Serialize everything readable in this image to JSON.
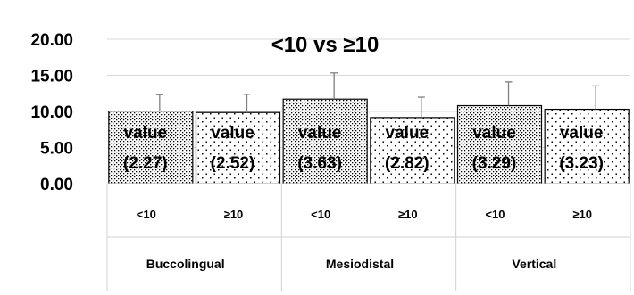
{
  "chart_data": {
    "type": "bar",
    "title": "<10 vs ≥10",
    "xlabel": "",
    "ylabel": "",
    "ylim": [
      0,
      20
    ],
    "yticks": [
      "0.00",
      "5.00",
      "10.00",
      "15.00",
      "20.00"
    ],
    "grid": true,
    "legend": "none",
    "groups": [
      "Buccolingual",
      "Mesiodistal",
      "Vertical"
    ],
    "categories": [
      "<10",
      "≥10",
      "<10",
      "≥10",
      "<10",
      "≥10"
    ],
    "values": [
      10.05,
      9.85,
      11.7,
      9.15,
      10.8,
      10.3
    ],
    "error_plus": [
      2.27,
      2.52,
      3.63,
      2.82,
      3.29,
      3.23
    ],
    "data_labels": [
      [
        "value",
        "(2.27)"
      ],
      [
        "value",
        "(2.52)"
      ],
      [
        "value",
        "(3.63)"
      ],
      [
        "value",
        "(2.82)"
      ],
      [
        "value",
        "(3.29)"
      ],
      [
        "value",
        "(3.23)"
      ]
    ],
    "bar_pattern": [
      "dense-dots",
      "sparse-dots",
      "dense-dots",
      "sparse-dots",
      "dense-dots",
      "sparse-dots"
    ],
    "colors": {
      "bar_fill": "#ffffff",
      "dots": "#000000",
      "grid": "#d9d9d9",
      "error": "#7f7f7f",
      "axis": "#d0d0d0"
    }
  }
}
